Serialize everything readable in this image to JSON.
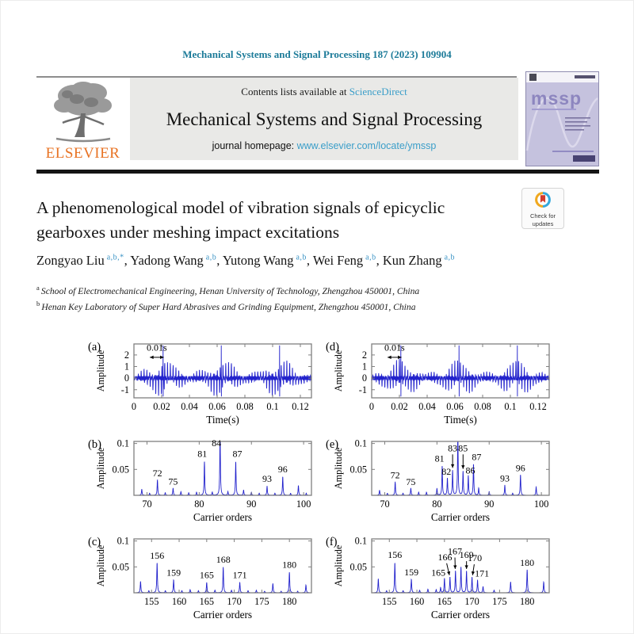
{
  "page": {
    "citation": "Mechanical Systems and Signal Processing 187 (2023) 109904",
    "elsevier_logo_text": "ELSEVIER",
    "banner": {
      "contents_line": "Contents lists available at",
      "sciencedirect": "ScienceDirect",
      "journal_title": "Mechanical Systems and Signal Processing",
      "homepage_label": "journal homepage:",
      "homepage_url": "www.elsevier.com/locate/ymssp"
    },
    "cover": {
      "title": "mssp"
    },
    "check_badge": {
      "line1": "Check for",
      "line2": "updates"
    },
    "article": {
      "title": "A phenomenological model of vibration signals of epicyclic gearboxes under meshing impact excitations"
    },
    "authors": [
      {
        "name": "Zongyao Liu",
        "sup": "a,b,*"
      },
      {
        "name": "Yadong Wang",
        "sup": "a,b"
      },
      {
        "name": "Yutong Wang",
        "sup": "a,b"
      },
      {
        "name": "Wei Feng",
        "sup": "a,b"
      },
      {
        "name": "Kun Zhang",
        "sup": "a,b"
      }
    ],
    "affiliations": [
      {
        "sup": "a",
        "text": "School of Electromechanical Engineering, Henan University of Technology, Zhengzhou 450001, China"
      },
      {
        "sup": "b",
        "text": "Henan Key Laboratory of Super Hard Abrasives and Grinding Equipment, Zhengzhou 450001, China"
      }
    ]
  },
  "colors": {
    "accent_teal": "#1d7b99",
    "link_blue": "#3b9ec9",
    "plot_blue": "#2222cc",
    "frame_gray": "#7f7f7f",
    "elsevier_orange": "#e87324"
  },
  "chart_data": [
    {
      "id": "a",
      "type": "line",
      "kind": "time",
      "panel_label": "(a)",
      "xlabel": "Time(s)",
      "ylabel": "Amplitude",
      "xlim": [
        0,
        0.128
      ],
      "ylim": [
        -1.7,
        2.95
      ],
      "xticks": [
        0,
        0.02,
        0.04,
        0.06,
        0.08,
        0.1,
        0.12
      ],
      "yticks": [
        -1,
        0,
        1,
        2
      ],
      "burst_centers": [
        0.021,
        0.063,
        0.105
      ],
      "burst_width": 0.0105,
      "comb_period": 0.0021,
      "carrier_freq": 1000,
      "phase": 0,
      "base_amp": 0.14,
      "burst_amp": 1.6,
      "main_spike": [
        2.82,
        -1.58
      ],
      "annotation": {
        "text": "0.01s",
        "ax1": 0.0115,
        "ax2": 0.0215,
        "ay": 1.8,
        "tx": 0.0165,
        "ty": 2.38
      },
      "line_color": "#2222cc"
    },
    {
      "id": "b",
      "type": "line",
      "kind": "spectrum",
      "panel_label": "(b)",
      "xlabel": "Carrier orders",
      "ylabel": "Amplitude",
      "xlim": [
        67.5,
        101.5
      ],
      "ylim": [
        0,
        0.104
      ],
      "xticks": [
        70,
        80,
        90,
        100
      ],
      "yticks": [
        0.05,
        0.1
      ],
      "peak_width": 0.07,
      "peaks": [
        {
          "x": 69,
          "h": 0.012
        },
        {
          "x": 70.5,
          "h": 0.004
        },
        {
          "x": 72,
          "h": 0.03
        },
        {
          "x": 73.5,
          "h": 0.005
        },
        {
          "x": 75,
          "h": 0.014
        },
        {
          "x": 76.5,
          "h": 0.007
        },
        {
          "x": 78,
          "h": 0.005
        },
        {
          "x": 79.5,
          "h": 0.006
        },
        {
          "x": 81,
          "h": 0.066
        },
        {
          "x": 82.5,
          "h": 0.006
        },
        {
          "x": 84,
          "h": 0.12
        },
        {
          "x": 85.5,
          "h": 0.007
        },
        {
          "x": 87,
          "h": 0.065
        },
        {
          "x": 88.5,
          "h": 0.01
        },
        {
          "x": 90,
          "h": 0.006
        },
        {
          "x": 91.5,
          "h": 0.004
        },
        {
          "x": 93,
          "h": 0.018
        },
        {
          "x": 94.5,
          "h": 0.004
        },
        {
          "x": 96,
          "h": 0.036
        },
        {
          "x": 97.5,
          "h": 0.004
        },
        {
          "x": 99,
          "h": 0.019
        },
        {
          "x": 100.5,
          "h": 0.004
        }
      ],
      "labels": [
        {
          "t": "72",
          "x": 72,
          "y": 0.037
        },
        {
          "t": "75",
          "x": 75,
          "y": 0.021
        },
        {
          "t": "81",
          "x": 80.6,
          "y": 0.074
        },
        {
          "t": "84",
          "x": 83.3,
          "y": 0.095
        },
        {
          "t": "87",
          "x": 87.3,
          "y": 0.074
        },
        {
          "t": "93",
          "x": 93,
          "y": 0.026
        },
        {
          "t": "96",
          "x": 96,
          "y": 0.044
        }
      ],
      "arrows": [],
      "line_color": "#2222cc"
    },
    {
      "id": "c",
      "type": "line",
      "kind": "spectrum",
      "panel_label": "(c)",
      "xlabel": "Carrier orders",
      "ylabel": "Amplitude",
      "xlim": [
        151.8,
        184
      ],
      "ylim": [
        0,
        0.104
      ],
      "xticks": [
        155,
        160,
        165,
        170,
        175,
        180
      ],
      "yticks": [
        0.05,
        0.1
      ],
      "peak_width": 0.07,
      "peaks": [
        {
          "x": 153,
          "h": 0.022
        },
        {
          "x": 154.5,
          "h": 0.004
        },
        {
          "x": 156,
          "h": 0.058
        },
        {
          "x": 157.5,
          "h": 0.004
        },
        {
          "x": 159,
          "h": 0.025
        },
        {
          "x": 160.5,
          "h": 0.004
        },
        {
          "x": 162,
          "h": 0.006
        },
        {
          "x": 163.5,
          "h": 0.004
        },
        {
          "x": 165,
          "h": 0.02
        },
        {
          "x": 166.5,
          "h": 0.005
        },
        {
          "x": 168,
          "h": 0.05
        },
        {
          "x": 169.5,
          "h": 0.005
        },
        {
          "x": 171,
          "h": 0.02
        },
        {
          "x": 172.5,
          "h": 0.004
        },
        {
          "x": 174,
          "h": 0.005
        },
        {
          "x": 175.5,
          "h": 0.003
        },
        {
          "x": 177,
          "h": 0.018
        },
        {
          "x": 178.5,
          "h": 0.003
        },
        {
          "x": 180,
          "h": 0.04
        },
        {
          "x": 181.5,
          "h": 0.003
        },
        {
          "x": 183,
          "h": 0.015
        }
      ],
      "labels": [
        {
          "t": "156",
          "x": 156,
          "y": 0.066
        },
        {
          "t": "159",
          "x": 159,
          "y": 0.033
        },
        {
          "t": "165",
          "x": 165,
          "y": 0.028
        },
        {
          "t": "168",
          "x": 168,
          "y": 0.058
        },
        {
          "t": "171",
          "x": 171,
          "y": 0.028
        },
        {
          "t": "180",
          "x": 180,
          "y": 0.048
        }
      ],
      "arrows": [],
      "line_color": "#2222cc"
    },
    {
      "id": "d",
      "type": "line",
      "kind": "time",
      "panel_label": "(d)",
      "xlabel": "Time(s)",
      "ylabel": "Amplitude",
      "xlim": [
        0,
        0.128
      ],
      "ylim": [
        -1.7,
        2.95
      ],
      "xticks": [
        0,
        0.02,
        0.04,
        0.06,
        0.08,
        0.1,
        0.12
      ],
      "yticks": [
        -1,
        0,
        1,
        2
      ],
      "burst_centers": [
        0.021,
        0.063,
        0.105
      ],
      "burst_width": 0.0105,
      "comb_period": 0.0021,
      "carrier_freq": 1000,
      "phase": 1.1,
      "base_amp": 0.14,
      "burst_amp": 1.6,
      "main_spike": [
        2.82,
        -1.58
      ],
      "annotation": {
        "text": "0.01s",
        "ax1": 0.0115,
        "ax2": 0.0215,
        "ay": 1.8,
        "tx": 0.0165,
        "ty": 2.38
      },
      "line_color": "#2222cc"
    },
    {
      "id": "e",
      "type": "line",
      "kind": "spectrum",
      "panel_label": "(e)",
      "xlabel": "Carrier orders",
      "ylabel": "Amplitude",
      "xlim": [
        67.5,
        101.5
      ],
      "ylim": [
        0,
        0.104
      ],
      "xticks": [
        70,
        80,
        90,
        100
      ],
      "yticks": [
        0.05,
        0.1
      ],
      "peak_width": 0.07,
      "peaks": [
        {
          "x": 69,
          "h": 0.01
        },
        {
          "x": 70.5,
          "h": 0.004
        },
        {
          "x": 72,
          "h": 0.026
        },
        {
          "x": 73.5,
          "h": 0.004
        },
        {
          "x": 75,
          "h": 0.014
        },
        {
          "x": 76.5,
          "h": 0.006
        },
        {
          "x": 78,
          "h": 0.006
        },
        {
          "x": 80,
          "h": 0.013
        },
        {
          "x": 81,
          "h": 0.057
        },
        {
          "x": 82,
          "h": 0.033
        },
        {
          "x": 83,
          "h": 0.048
        },
        {
          "x": 84,
          "h": 0.12
        },
        {
          "x": 85,
          "h": 0.046
        },
        {
          "x": 86,
          "h": 0.038
        },
        {
          "x": 87,
          "h": 0.06
        },
        {
          "x": 88,
          "h": 0.014
        },
        {
          "x": 90,
          "h": 0.007
        },
        {
          "x": 93,
          "h": 0.02
        },
        {
          "x": 94.5,
          "h": 0.004
        },
        {
          "x": 96,
          "h": 0.04
        },
        {
          "x": 99,
          "h": 0.016
        }
      ],
      "labels": [
        {
          "t": "72",
          "x": 72,
          "y": 0.033
        },
        {
          "t": "75",
          "x": 75,
          "y": 0.02
        },
        {
          "t": "81",
          "x": 80.5,
          "y": 0.065
        },
        {
          "t": "82",
          "x": 81.8,
          "y": 0.04
        },
        {
          "t": "83",
          "x": 83,
          "y": 0.085
        },
        {
          "t": "85",
          "x": 85,
          "y": 0.085
        },
        {
          "t": "86",
          "x": 86.4,
          "y": 0.042
        },
        {
          "t": "87",
          "x": 87.6,
          "y": 0.068
        },
        {
          "t": "93",
          "x": 93,
          "y": 0.027
        },
        {
          "t": "96",
          "x": 96,
          "y": 0.047
        }
      ],
      "arrows": [
        {
          "x1": 83,
          "y1": 0.079,
          "x2": 83,
          "y2": 0.053
        },
        {
          "x1": 85,
          "y1": 0.079,
          "x2": 85,
          "y2": 0.051
        }
      ],
      "line_color": "#2222cc"
    },
    {
      "id": "f",
      "type": "line",
      "kind": "spectrum",
      "panel_label": "(f)",
      "xlabel": "Carrier orders",
      "ylabel": "Amplitude",
      "xlim": [
        151.8,
        184
      ],
      "ylim": [
        0,
        0.104
      ],
      "xticks": [
        155,
        160,
        165,
        170,
        175,
        180
      ],
      "yticks": [
        0.05,
        0.1
      ],
      "peak_width": 0.07,
      "peaks": [
        {
          "x": 153,
          "h": 0.027
        },
        {
          "x": 154.5,
          "h": 0.004
        },
        {
          "x": 156,
          "h": 0.058
        },
        {
          "x": 157.5,
          "h": 0.004
        },
        {
          "x": 159,
          "h": 0.026
        },
        {
          "x": 160.5,
          "h": 0.005
        },
        {
          "x": 162,
          "h": 0.007
        },
        {
          "x": 163.5,
          "h": 0.006
        },
        {
          "x": 164.3,
          "h": 0.01
        },
        {
          "x": 165,
          "h": 0.028
        },
        {
          "x": 166,
          "h": 0.03
        },
        {
          "x": 167,
          "h": 0.042
        },
        {
          "x": 168,
          "h": 0.05
        },
        {
          "x": 169,
          "h": 0.042
        },
        {
          "x": 170,
          "h": 0.03
        },
        {
          "x": 171,
          "h": 0.024
        },
        {
          "x": 172,
          "h": 0.012
        },
        {
          "x": 174,
          "h": 0.005
        },
        {
          "x": 177,
          "h": 0.021
        },
        {
          "x": 180,
          "h": 0.045
        },
        {
          "x": 183,
          "h": 0.021
        }
      ],
      "labels": [
        {
          "t": "156",
          "x": 156,
          "y": 0.067
        },
        {
          "t": "159",
          "x": 159,
          "y": 0.034
        },
        {
          "t": "165",
          "x": 163.9,
          "y": 0.033
        },
        {
          "t": "166",
          "x": 165.1,
          "y": 0.063
        },
        {
          "t": "167",
          "x": 166.9,
          "y": 0.074
        },
        {
          "t": "169",
          "x": 169,
          "y": 0.067
        },
        {
          "t": "170",
          "x": 170.5,
          "y": 0.061
        },
        {
          "t": "171",
          "x": 171.8,
          "y": 0.031
        },
        {
          "t": "180",
          "x": 180,
          "y": 0.052
        }
      ],
      "arrows": [
        {
          "x1": 165.4,
          "y1": 0.057,
          "x2": 165.9,
          "y2": 0.034
        },
        {
          "x1": 166.9,
          "y1": 0.068,
          "x2": 166.95,
          "y2": 0.046
        },
        {
          "x1": 169,
          "y1": 0.061,
          "x2": 169,
          "y2": 0.046
        },
        {
          "x1": 170.4,
          "y1": 0.055,
          "x2": 170.1,
          "y2": 0.034
        }
      ],
      "line_color": "#2222cc"
    }
  ]
}
